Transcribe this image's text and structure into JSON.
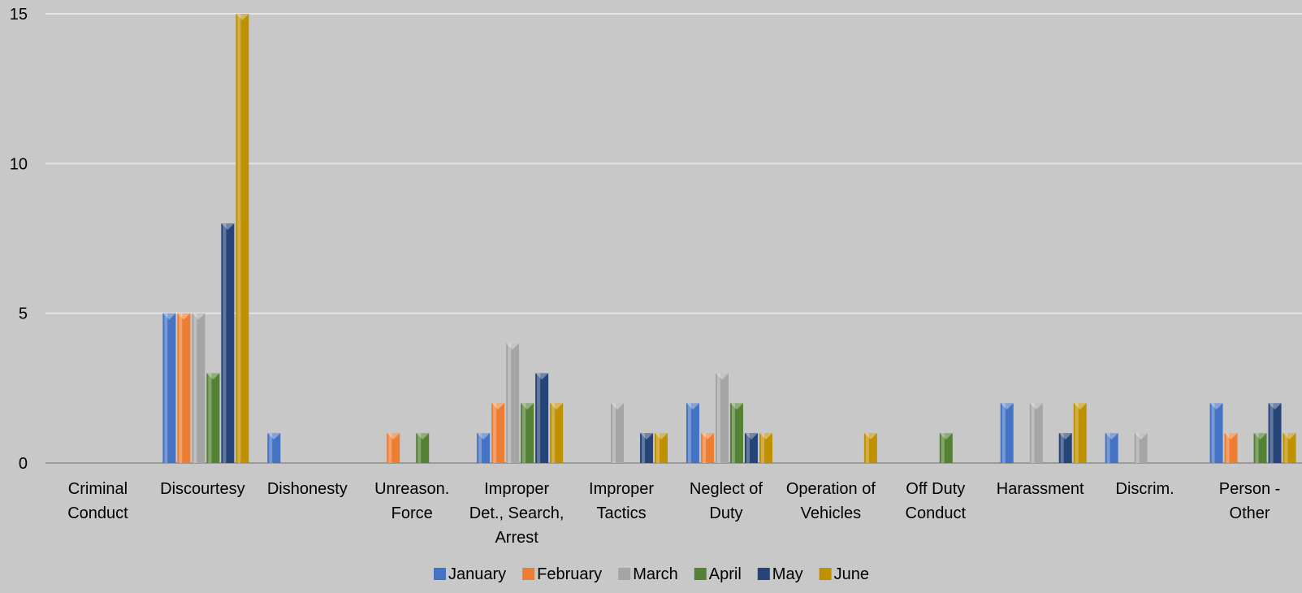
{
  "chart_data": {
    "type": "bar",
    "categories": [
      [
        "Criminal",
        "Conduct"
      ],
      [
        "Discourtesy"
      ],
      [
        "Dishonesty"
      ],
      [
        "Unreason.",
        "Force"
      ],
      [
        "Improper",
        "Det., Search,",
        "Arrest"
      ],
      [
        "Improper",
        "Tactics"
      ],
      [
        "Neglect of",
        "Duty"
      ],
      [
        "Operation of",
        "Vehicles"
      ],
      [
        "Off Duty",
        "Conduct"
      ],
      [
        "Harassment"
      ],
      [
        "Discrim."
      ],
      [
        "Person -",
        "Other"
      ]
    ],
    "series": [
      {
        "name": "January",
        "color": "#4472c4",
        "values": [
          0,
          5,
          1,
          0,
          1,
          0,
          2,
          0,
          0,
          2,
          1,
          2
        ]
      },
      {
        "name": "February",
        "color": "#ed7d31",
        "values": [
          0,
          5,
          0,
          1,
          2,
          0,
          1,
          0,
          0,
          0,
          0,
          1
        ]
      },
      {
        "name": "March",
        "color": "#a5a5a5",
        "values": [
          0,
          5,
          0,
          0,
          4,
          2,
          3,
          0,
          0,
          2,
          1,
          0
        ]
      },
      {
        "name": "April",
        "color": "#548235",
        "values": [
          0,
          3,
          0,
          1,
          2,
          0,
          2,
          0,
          1,
          0,
          0,
          1
        ]
      },
      {
        "name": "May",
        "color": "#264478",
        "values": [
          0,
          8,
          0,
          0,
          3,
          1,
          1,
          0,
          0,
          1,
          0,
          2
        ]
      },
      {
        "name": "June",
        "color": "#bf9000",
        "values": [
          0,
          15,
          0,
          0,
          2,
          1,
          1,
          1,
          0,
          2,
          0,
          1
        ]
      }
    ],
    "yticks": [
      "0",
      "5",
      "10",
      "15"
    ],
    "ylim": [
      0,
      15
    ],
    "grid": true,
    "legend": "bottom"
  }
}
